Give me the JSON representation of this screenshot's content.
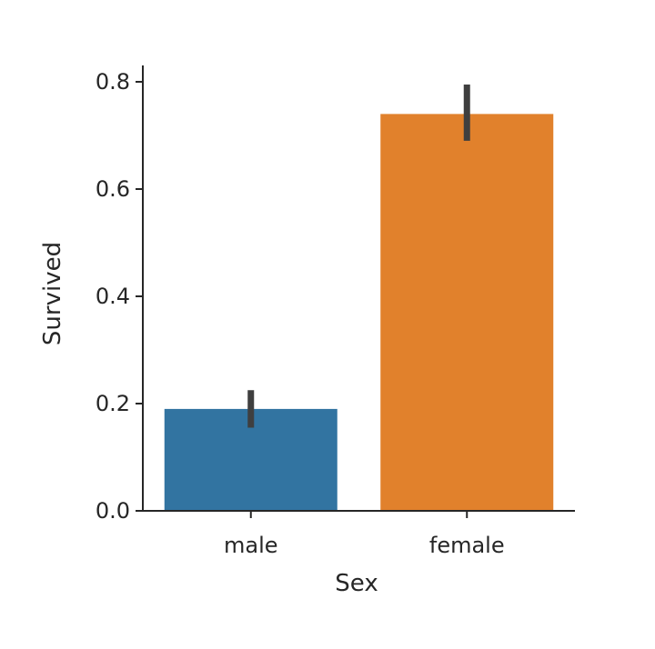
{
  "chart_data": {
    "type": "bar",
    "title": "",
    "xlabel": "Sex",
    "ylabel": "Survived",
    "categories": [
      "male",
      "female"
    ],
    "values": [
      0.19,
      0.74
    ],
    "error_bars": [
      {
        "low": 0.155,
        "high": 0.225
      },
      {
        "low": 0.69,
        "high": 0.795
      }
    ],
    "ylim": [
      0,
      0.8
    ],
    "yticks": [
      0.0,
      0.2,
      0.4,
      0.6,
      0.8
    ],
    "ytick_labels": [
      "0.0",
      "0.2",
      "0.4",
      "0.6",
      "0.8"
    ],
    "colors": [
      "#3274a1",
      "#e1812c"
    ],
    "error_color": "#3f3f3f",
    "grid": false,
    "legend": "none"
  }
}
